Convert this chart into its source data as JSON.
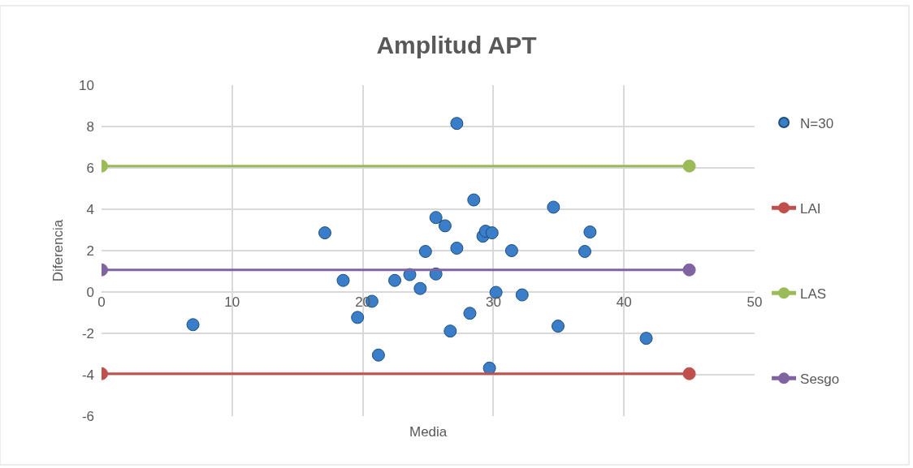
{
  "chart_data": {
    "type": "scatter",
    "title": "Amplitud APT",
    "xlabel": "Media",
    "ylabel": "Diferencia",
    "xlim": [
      0,
      50
    ],
    "ylim": [
      -6,
      10
    ],
    "xticks": [
      0,
      10,
      20,
      30,
      40,
      50
    ],
    "yticks": [
      -6,
      -4,
      -2,
      0,
      2,
      4,
      6,
      8,
      10
    ],
    "grid": true,
    "legend": "right",
    "marker": "circle",
    "series": [
      {
        "name": "N=30",
        "color": "#3a7dc9",
        "x": [
          7.0,
          17.1,
          18.5,
          19.6,
          20.7,
          21.2,
          22.45,
          23.6,
          24.4,
          24.8,
          25.6,
          25.6,
          26.3,
          26.7,
          27.2,
          27.2,
          28.2,
          28.5,
          29.2,
          29.4,
          29.9,
          29.7,
          30.2,
          31.4,
          32.2,
          34.6,
          34.95,
          37.0,
          37.4,
          41.7
        ],
        "values": [
          -1.58,
          2.86,
          0.56,
          -1.23,
          -0.45,
          -3.05,
          0.56,
          0.84,
          0.17,
          1.96,
          3.6,
          0.87,
          3.2,
          -1.89,
          8.15,
          2.12,
          -1.03,
          4.45,
          2.7,
          2.94,
          2.86,
          -3.68,
          -0.02,
          2.0,
          -0.14,
          4.1,
          -1.65,
          1.96,
          2.9,
          -2.24
        ]
      },
      {
        "name": "LAI",
        "color": "#c0504d",
        "type": "line",
        "x": [
          0,
          45
        ],
        "values": [
          -3.95,
          -3.95
        ]
      },
      {
        "name": "LAS",
        "color": "#9bbb59",
        "type": "line",
        "x": [
          0,
          45
        ],
        "values": [
          6.09,
          6.09
        ]
      },
      {
        "name": "Sesgo",
        "color": "#8064a2",
        "type": "line",
        "x": [
          0,
          45
        ],
        "values": [
          1.07,
          1.07
        ]
      }
    ]
  }
}
